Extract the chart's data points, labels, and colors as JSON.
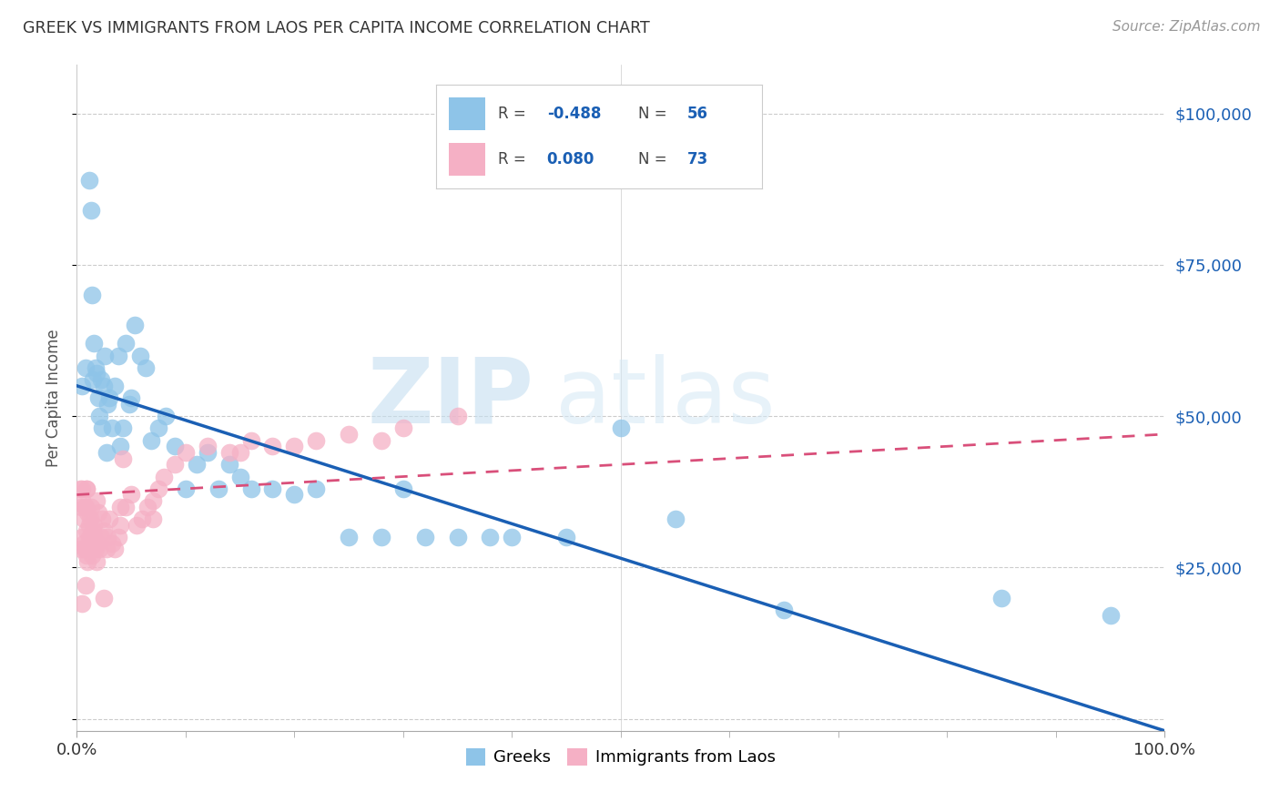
{
  "title": "GREEK VS IMMIGRANTS FROM LAOS PER CAPITA INCOME CORRELATION CHART",
  "source": "Source: ZipAtlas.com",
  "ylabel": "Per Capita Income",
  "legend_label1": "Greeks",
  "legend_label2": "Immigrants from Laos",
  "r1": -0.488,
  "n1": 56,
  "r2": 0.08,
  "n2": 73,
  "color_blue": "#8ec4e8",
  "color_pink": "#f5b0c5",
  "color_blue_line": "#1a5fb4",
  "color_pink_line": "#d94f7a",
  "watermark_zip": "ZIP",
  "watermark_atlas": "atlas",
  "yticks": [
    0,
    25000,
    50000,
    75000,
    100000
  ],
  "ytick_labels": [
    "",
    "$25,000",
    "$50,000",
    "$75,000",
    "$100,000"
  ],
  "xlim": [
    0,
    1.0
  ],
  "ylim": [
    -2000,
    108000
  ],
  "blue_intercept": 55000,
  "blue_slope": -57000,
  "pink_intercept": 37000,
  "pink_slope": 10000,
  "blue_x": [
    0.005,
    0.008,
    0.011,
    0.013,
    0.014,
    0.015,
    0.016,
    0.017,
    0.018,
    0.02,
    0.021,
    0.022,
    0.023,
    0.025,
    0.026,
    0.027,
    0.028,
    0.03,
    0.032,
    0.035,
    0.038,
    0.04,
    0.042,
    0.045,
    0.048,
    0.05,
    0.053,
    0.058,
    0.063,
    0.068,
    0.075,
    0.082,
    0.09,
    0.1,
    0.11,
    0.12,
    0.13,
    0.14,
    0.15,
    0.16,
    0.18,
    0.2,
    0.22,
    0.25,
    0.28,
    0.3,
    0.32,
    0.35,
    0.38,
    0.4,
    0.45,
    0.5,
    0.55,
    0.65,
    0.85,
    0.95
  ],
  "blue_y": [
    55000,
    58000,
    89000,
    84000,
    70000,
    56000,
    62000,
    58000,
    57000,
    53000,
    50000,
    56000,
    48000,
    55000,
    60000,
    44000,
    52000,
    53000,
    48000,
    55000,
    60000,
    45000,
    48000,
    62000,
    52000,
    53000,
    65000,
    60000,
    58000,
    46000,
    48000,
    50000,
    45000,
    38000,
    42000,
    44000,
    38000,
    42000,
    40000,
    38000,
    38000,
    37000,
    38000,
    30000,
    30000,
    38000,
    30000,
    30000,
    30000,
    30000,
    30000,
    48000,
    33000,
    18000,
    20000,
    17000
  ],
  "pink_x": [
    0.003,
    0.004,
    0.004,
    0.005,
    0.005,
    0.006,
    0.006,
    0.007,
    0.007,
    0.008,
    0.008,
    0.008,
    0.009,
    0.009,
    0.009,
    0.01,
    0.01,
    0.011,
    0.011,
    0.012,
    0.012,
    0.013,
    0.013,
    0.014,
    0.015,
    0.015,
    0.016,
    0.016,
    0.017,
    0.018,
    0.018,
    0.019,
    0.02,
    0.021,
    0.022,
    0.023,
    0.025,
    0.027,
    0.028,
    0.03,
    0.032,
    0.035,
    0.038,
    0.04,
    0.042,
    0.045,
    0.05,
    0.055,
    0.06,
    0.065,
    0.07,
    0.075,
    0.08,
    0.09,
    0.1,
    0.12,
    0.14,
    0.16,
    0.18,
    0.2,
    0.22,
    0.25,
    0.28,
    0.3,
    0.35,
    0.04,
    0.07,
    0.15,
    0.025,
    0.008,
    0.005,
    0.009,
    0.005
  ],
  "pink_y": [
    38000,
    35000,
    28000,
    36000,
    30000,
    33000,
    29000,
    35000,
    28000,
    35000,
    28000,
    22000,
    31000,
    27000,
    38000,
    34000,
    26000,
    32000,
    30000,
    33000,
    28000,
    30000,
    35000,
    27000,
    31000,
    29000,
    30000,
    32000,
    28000,
    26000,
    36000,
    29000,
    34000,
    28000,
    30000,
    33000,
    31000,
    28000,
    30000,
    33000,
    29000,
    28000,
    30000,
    32000,
    43000,
    35000,
    37000,
    32000,
    33000,
    35000,
    36000,
    38000,
    40000,
    42000,
    44000,
    45000,
    44000,
    46000,
    45000,
    45000,
    46000,
    47000,
    46000,
    48000,
    50000,
    35000,
    33000,
    44000,
    20000,
    35000,
    38000,
    38000,
    19000
  ]
}
